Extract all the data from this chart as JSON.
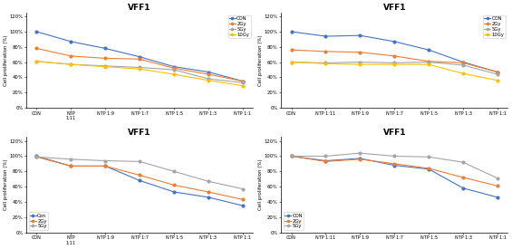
{
  "ylabel": "Cell proliferation (%)",
  "plots": [
    {
      "title": "VFF1",
      "legend": [
        "CON",
        "2Gy",
        "5Gy",
        "10Gy"
      ],
      "colors": [
        "#4472C4",
        "#ED7D31",
        "#A5A5A5",
        "#FFC000"
      ],
      "ylim": [
        0,
        1.25
      ],
      "yticks": [
        0,
        0.2,
        0.4,
        0.6,
        0.8,
        1.0,
        1.2
      ],
      "ytick_labels": [
        "0%",
        "20%",
        "40%",
        "60%",
        "80%",
        "100%",
        "120%"
      ],
      "data": [
        [
          1.0,
          0.87,
          0.78,
          0.67,
          0.54,
          0.47,
          0.35
        ],
        [
          0.78,
          0.68,
          0.65,
          0.64,
          0.52,
          0.44,
          0.35
        ],
        [
          0.61,
          0.57,
          0.55,
          0.53,
          0.5,
          0.38,
          0.33
        ],
        [
          0.61,
          0.57,
          0.54,
          0.51,
          0.44,
          0.36,
          0.29
        ]
      ],
      "x_labels": [
        "CON",
        "NTP\n1:11",
        "NTP 1:9",
        "NTP 1:7",
        "NTP 1:5",
        "NTP 1:3",
        "NTP 1:1"
      ],
      "legend_loc": "upper right"
    },
    {
      "title": "VFF1",
      "legend": [
        "CON",
        "2Gy",
        "5Gy",
        "10Gy"
      ],
      "colors": [
        "#4472C4",
        "#ED7D31",
        "#A5A5A5",
        "#FFC000"
      ],
      "ylim": [
        0,
        1.25
      ],
      "yticks": [
        0,
        0.2,
        0.4,
        0.6,
        0.8,
        1.0,
        1.2
      ],
      "ytick_labels": [
        "0%",
        "20%",
        "40%",
        "60%",
        "80%",
        "100%",
        "120%"
      ],
      "data": [
        [
          1.0,
          0.94,
          0.95,
          0.87,
          0.76,
          0.6,
          0.47
        ],
        [
          0.76,
          0.74,
          0.73,
          0.68,
          0.61,
          0.59,
          0.47
        ],
        [
          0.6,
          0.59,
          0.6,
          0.59,
          0.6,
          0.56,
          0.44
        ],
        [
          0.6,
          0.58,
          0.57,
          0.57,
          0.57,
          0.45,
          0.36
        ]
      ],
      "x_labels": [
        "CON",
        "NTP 1:11",
        "NTP 1:9",
        "NTP 1:7",
        "NTP 1:5",
        "NTP 1:3",
        "NTP 1:1"
      ],
      "legend_loc": "upper right"
    },
    {
      "title": "VFF1",
      "legend": [
        "Con",
        "2Gy",
        "5Gy"
      ],
      "colors": [
        "#4472C4",
        "#ED7D31",
        "#A5A5A5"
      ],
      "ylim": [
        0,
        1.25
      ],
      "yticks": [
        0,
        0.2,
        0.4,
        0.6,
        0.8,
        1.0,
        1.2
      ],
      "ytick_labels": [
        "0%",
        "20%",
        "40%",
        "60%",
        "80%",
        "100%",
        "120%"
      ],
      "data": [
        [
          1.0,
          0.87,
          0.87,
          0.68,
          0.53,
          0.46,
          0.35
        ],
        [
          0.99,
          0.87,
          0.87,
          0.75,
          0.62,
          0.53,
          0.43
        ],
        [
          0.99,
          0.96,
          0.94,
          0.93,
          0.8,
          0.67,
          0.57
        ]
      ],
      "x_labels": [
        "CON",
        "NTP\n1:11",
        "NTP 1:9",
        "NTP 1:7",
        "NTP 1:5",
        "NTP 1:3",
        "NTP 1:1"
      ],
      "legend_loc": "lower left"
    },
    {
      "title": "VFF1",
      "legend": [
        "CON",
        "2Gy",
        "5Gy"
      ],
      "colors": [
        "#4472C4",
        "#ED7D31",
        "#A5A5A5"
      ],
      "ylim": [
        0,
        1.25
      ],
      "yticks": [
        0,
        0.2,
        0.4,
        0.6,
        0.8,
        1.0,
        1.2
      ],
      "ytick_labels": [
        "0%",
        "20%",
        "40%",
        "60%",
        "80%",
        "100%",
        "120%"
      ],
      "data": [
        [
          1.0,
          0.94,
          0.97,
          0.88,
          0.83,
          0.58,
          0.46
        ],
        [
          1.0,
          0.93,
          0.96,
          0.9,
          0.84,
          0.72,
          0.61
        ],
        [
          1.0,
          1.0,
          1.04,
          1.0,
          0.99,
          0.92,
          0.71
        ]
      ],
      "x_labels": [
        "CON",
        "NTP 1:11",
        "NTP 1:9",
        "NTP 1:7",
        "NTP 1:5",
        "NTP 1:3",
        "NTP 1:1"
      ],
      "legend_loc": "lower left"
    }
  ]
}
